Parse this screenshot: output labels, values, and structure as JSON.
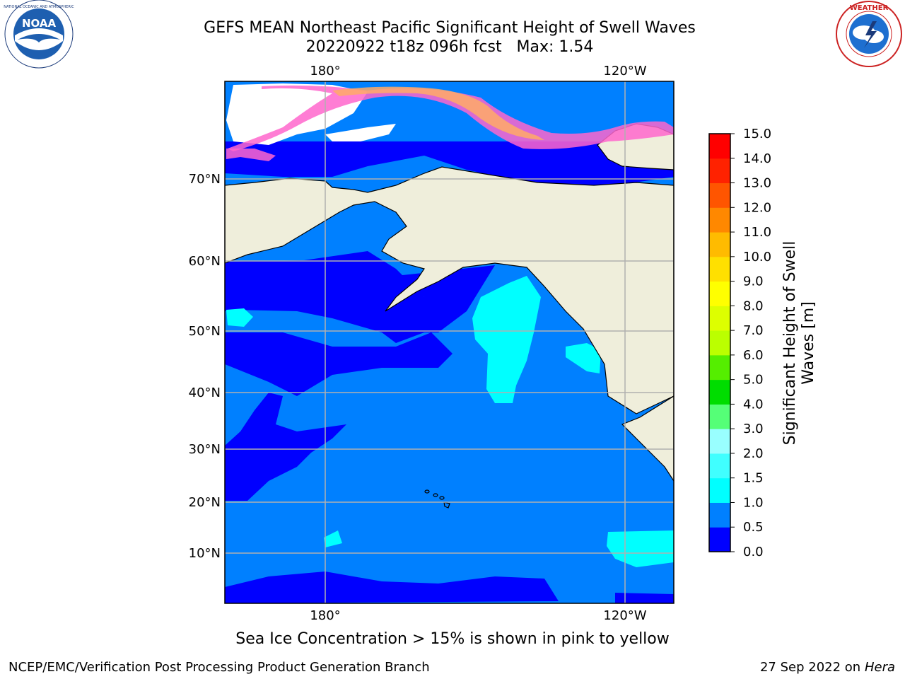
{
  "title": {
    "line1": "GEFS MEAN Northeast Pacific Significant Height of Swell Waves",
    "line2": "20220922 t18z 096h fcst   Max: 1.54"
  },
  "map": {
    "lon_labels": [
      "180°",
      "120°W"
    ],
    "lat_labels": [
      "70°N",
      "60°N",
      "50°N",
      "40°N",
      "30°N",
      "20°N",
      "10°N"
    ]
  },
  "colorbar": {
    "label_line1": "Significant Height of Swell",
    "label_line2": "Waves [m]",
    "ticks": [
      "0.0",
      "0.5",
      "1.0",
      "1.5",
      "2.0",
      "3.0",
      "4.0",
      "5.0",
      "6.0",
      "7.0",
      "8.0",
      "9.0",
      "10.0",
      "11.0",
      "12.0",
      "13.0",
      "14.0",
      "15.0"
    ],
    "colors": [
      "#0000ff",
      "#0080ff",
      "#00ffff",
      "#40ffff",
      "#99ffff",
      "#55ff77",
      "#00dd00",
      "#55ee00",
      "#bbff00",
      "#ddff00",
      "#ffff00",
      "#ffe000",
      "#ffbb00",
      "#ff8800",
      "#ff5500",
      "#ff2200",
      "#ff0000"
    ]
  },
  "colors": {
    "land": "#efeedb",
    "ocean_low": "#0000ff",
    "ocean_mid": "#0080ff",
    "ocean_high": "#00ffff",
    "ice_pink": "#ff66cc",
    "ice_orange": "#ffaa66",
    "grid": "#b0b0b0"
  },
  "logos": {
    "left": "noaa-logo",
    "right": "national-weather-service-logo"
  },
  "footer": {
    "ice_note": "Sea Ice Concentration > 15% is shown in pink to yellow",
    "credit": "NCEP/EMC/Verification Post Processing Product Generation Branch",
    "date": "27 Sep 2022 on",
    "machine": "Hera"
  }
}
